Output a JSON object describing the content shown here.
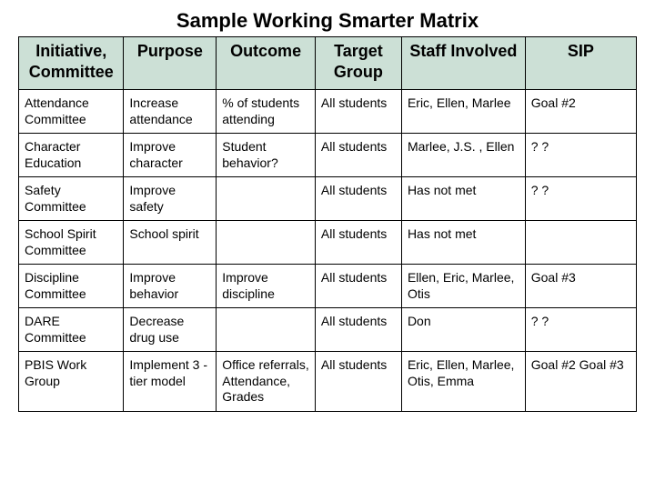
{
  "title": "Sample Working Smarter Matrix",
  "table": {
    "type": "table",
    "header_bg": "#cce0d6",
    "border_color": "#000000",
    "header_fontsize": 18,
    "cell_fontsize": 14,
    "columns": [
      {
        "label": "Initiative, Committee",
        "width_pct": 17
      },
      {
        "label": "Purpose",
        "width_pct": 15
      },
      {
        "label": "Outcome",
        "width_pct": 16
      },
      {
        "label": "Target Group",
        "width_pct": 14
      },
      {
        "label": "Staff Involved",
        "width_pct": 20
      },
      {
        "label": "SIP",
        "width_pct": 18
      }
    ],
    "rows": [
      [
        "Attendance Committee",
        "Increase attendance",
        "% of students attending",
        "All students",
        "Eric, Ellen, Marlee",
        "Goal #2"
      ],
      [
        "Character Education",
        "Improve character",
        "Student behavior?",
        "All students",
        "Marlee, J.S. , Ellen",
        "? ?"
      ],
      [
        "Safety Committee",
        "Improve safety",
        "",
        "All students",
        "Has not met",
        "? ?"
      ],
      [
        "School Spirit Committee",
        "School spirit",
        "",
        "All students",
        "Has not met",
        ""
      ],
      [
        "Discipline Committee",
        "Improve behavior",
        "Improve discipline",
        "All students",
        "Ellen, Eric, Marlee, Otis",
        "Goal #3"
      ],
      [
        "DARE Committee",
        "Decrease drug use",
        "",
        "All students",
        "Don",
        "? ?"
      ],
      [
        "PBIS Work Group",
        "Implement 3 -tier model",
        "Office referrals, Attendance, Grades",
        "All students",
        "Eric, Ellen, Marlee, Otis, Emma",
        "Goal #2 Goal #3"
      ]
    ]
  }
}
